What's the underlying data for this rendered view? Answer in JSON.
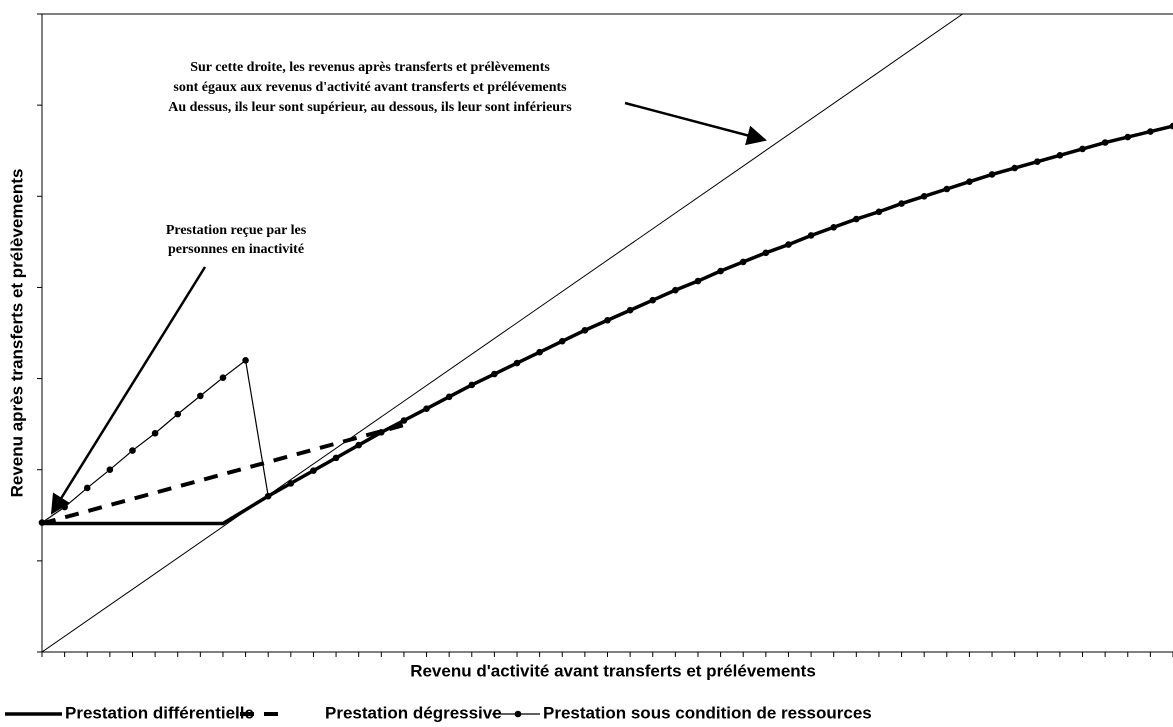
{
  "chart_data": {
    "type": "line",
    "x_label": "Revenu d'activité avant transferts et prélévements",
    "y_label": "Revenu après transferts et prélèvements",
    "xlim": [
      0,
      50
    ],
    "ylim": [
      0,
      70
    ],
    "xticks": [
      0,
      1,
      2,
      3,
      4,
      5,
      6,
      7,
      8,
      9,
      10,
      11,
      12,
      13,
      14,
      15,
      16,
      17,
      18,
      19,
      20,
      21,
      22,
      23,
      24,
      25,
      26,
      27,
      28,
      29,
      30,
      31,
      32,
      33,
      34,
      35,
      36,
      37,
      38,
      39,
      40,
      41,
      42,
      43,
      44,
      45,
      46,
      47,
      48,
      49,
      50
    ],
    "yticks": [
      0,
      10,
      20,
      30,
      40,
      50,
      60,
      70
    ],
    "grid": false,
    "legend": "bottom",
    "annotations": [
      {
        "lines": [
          "Sur cette droite, les revenus après transferts et prélèvements",
          "sont égaux aux revenus d'activité avant transferts et prélévements",
          "Au dessus, ils leur sont supérieur, au dessous, ils leur sont inférieurs"
        ]
      },
      {
        "lines": [
          "Prestation reçue par les",
          "personnes en inactivité"
        ]
      }
    ],
    "series": [
      {
        "color": "#000000",
        "style": "solid",
        "width": 1,
        "marker": false,
        "x": [
          0,
          40.7
        ],
        "values": [
          0,
          70
        ]
      },
      {
        "name": "Prestation différentielle",
        "color": "#000000",
        "style": "solid",
        "width": 3.5,
        "marker": false,
        "x": [
          0,
          8,
          9,
          10,
          11,
          12,
          13,
          14,
          15,
          16,
          17,
          18,
          19,
          20,
          21,
          22,
          23,
          24,
          25,
          26,
          27,
          28,
          29,
          30,
          31,
          32,
          33,
          34,
          35,
          36,
          37,
          38,
          39,
          40,
          41,
          42,
          43,
          44,
          45,
          46,
          47,
          48,
          49,
          50
        ],
        "values": [
          14.1,
          14.1,
          15.6,
          17.1,
          18.5,
          19.9,
          21.3,
          22.7,
          24.1,
          25.4,
          26.7,
          28.0,
          29.3,
          30.5,
          31.7,
          32.9,
          34.1,
          35.3,
          36.4,
          37.5,
          38.6,
          39.7,
          40.7,
          41.8,
          42.8,
          43.8,
          44.7,
          45.7,
          46.6,
          47.5,
          48.3,
          49.2,
          50.0,
          50.8,
          51.6,
          52.4,
          53.1,
          53.8,
          54.5,
          55.2,
          55.9,
          56.5,
          57.1,
          57.7
        ]
      },
      {
        "name": "Prestation dégressive",
        "color": "#000000",
        "style": "dashed",
        "width": 4,
        "marker": false,
        "x": [
          0,
          16.3
        ],
        "values": [
          14.1,
          25.1
        ]
      },
      {
        "name": "Prestation sous condition de ressources",
        "color": "#000000",
        "style": "solid",
        "width": 1.2,
        "marker": true,
        "x": [
          0,
          1,
          2,
          3,
          4,
          5,
          6,
          7,
          8,
          9,
          10,
          11,
          12,
          13,
          14,
          15,
          16,
          17,
          18,
          19,
          20,
          21,
          22,
          23,
          24,
          25,
          26,
          27,
          28,
          29,
          30,
          31,
          32,
          33,
          34,
          35,
          36,
          37,
          38,
          39,
          40,
          41,
          42,
          43,
          44,
          45,
          46,
          47,
          48,
          49,
          50
        ],
        "values": [
          14.2,
          15.9,
          18.0,
          20.0,
          22.1,
          24.0,
          26.1,
          28.1,
          30.1,
          32.0,
          17.1,
          18.5,
          19.9,
          21.3,
          22.7,
          24.1,
          25.4,
          26.7,
          28.0,
          29.3,
          30.5,
          31.7,
          32.9,
          34.1,
          35.3,
          36.4,
          37.5,
          38.6,
          39.7,
          40.7,
          41.8,
          42.8,
          43.8,
          44.7,
          45.7,
          46.6,
          47.5,
          48.3,
          49.2,
          50.0,
          50.8,
          51.6,
          52.4,
          53.1,
          53.8,
          54.5,
          55.2,
          55.9,
          56.5,
          57.1,
          57.7
        ]
      }
    ]
  }
}
